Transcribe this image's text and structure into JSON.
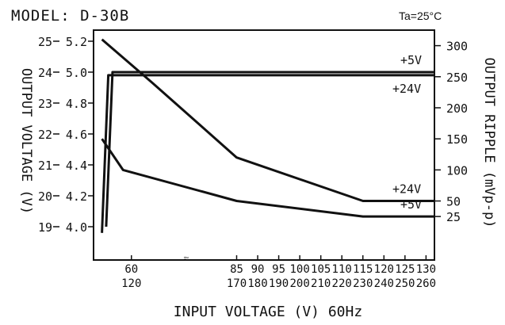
{
  "chart_data": {
    "type": "line",
    "title": "MODEL: D-30B",
    "condition": "Ta=25°C",
    "xlabel": "INPUT VOLTAGE (V) 60Hz",
    "ylabel_left": "OUTPUT VOLTAGE (V)",
    "ylabel_right": "OUTPUT RIPPLE (mVp-p)",
    "x_ticks_row1": [
      "60",
      "85",
      "90",
      "95",
      "100",
      "105",
      "110",
      "115",
      "120",
      "125",
      "130"
    ],
    "x_ticks_row2": [
      "120",
      "170",
      "180",
      "190",
      "200",
      "210",
      "220",
      "230",
      "240",
      "250",
      "260"
    ],
    "x_ticks_positions": [
      60,
      85,
      90,
      95,
      100,
      105,
      110,
      115,
      120,
      125,
      130
    ],
    "x_break_mark": "≈",
    "xlim": [
      51,
      132
    ],
    "y_left_24v_ticks": [
      "25",
      "24",
      "23",
      "22",
      "21",
      "20",
      "19"
    ],
    "y_left_24v_values": [
      25,
      24,
      23,
      22,
      21,
      20,
      19
    ],
    "y_left_5v_ticks": [
      "5.2",
      "5.0",
      "4.8",
      "4.6",
      "4.4",
      "4.2",
      "4.0"
    ],
    "y_right_ticks": [
      "300",
      "250",
      "200",
      "150",
      "100",
      "50",
      "25"
    ],
    "y_right_values": [
      300,
      250,
      200,
      150,
      100,
      50,
      25
    ],
    "ylim_right": [
      -45,
      325
    ],
    "series": [
      {
        "name": "+5V",
        "axis": "output_voltage_5v",
        "x": [
          54,
          55.5,
          60,
          85,
          115,
          132
        ],
        "y": [
          4.0,
          5.0,
          5.0,
          5.0,
          5.0,
          5.0
        ]
      },
      {
        "name": "+24V",
        "axis": "output_voltage_24v",
        "x": [
          53,
          54.5,
          60,
          85,
          115,
          132
        ],
        "y": [
          18.8,
          23.9,
          23.9,
          23.9,
          23.9,
          23.9
        ]
      },
      {
        "name": "+24V",
        "axis": "output_ripple",
        "x": [
          53,
          65,
          85,
          115,
          132
        ],
        "y": [
          310,
          240,
          120,
          50,
          50
        ]
      },
      {
        "name": "+5V",
        "axis": "output_ripple",
        "x": [
          53,
          58,
          85,
          115,
          132
        ],
        "y": [
          150,
          100,
          50,
          25,
          25
        ]
      }
    ],
    "line_color": "#111111",
    "grid": false
  }
}
